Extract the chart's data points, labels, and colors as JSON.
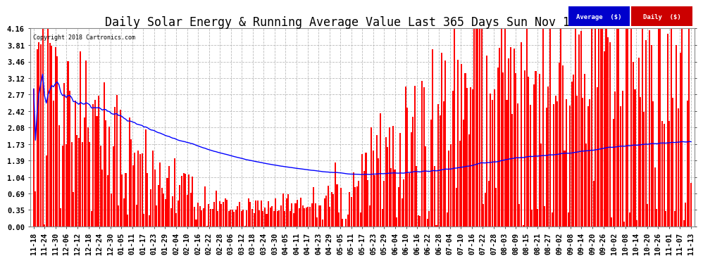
{
  "title": "Daily Solar Energy & Running Average Value Last 365 Days Sun Nov 18 16:34",
  "copyright": "Copyright 2018 Cartronics.com",
  "bar_color": "#FF0000",
  "avg_line_color": "#0000FF",
  "background_color": "#FFFFFF",
  "plot_bg_color": "#FFFFFF",
  "grid_color": "#AAAAAA",
  "yticks": [
    0.0,
    0.35,
    0.69,
    1.04,
    1.39,
    1.73,
    2.08,
    2.42,
    2.77,
    3.12,
    3.46,
    3.81,
    4.16
  ],
  "ylim": [
    0,
    4.16
  ],
  "title_fontsize": 12,
  "tick_fontsize": 7.5,
  "legend_labels": [
    "Average  ($)",
    "Daily  ($)"
  ],
  "legend_colors": [
    "#0000CC",
    "#CC0000"
  ],
  "xtick_labels": [
    "11-18",
    "11-24",
    "11-30",
    "12-06",
    "12-12",
    "12-18",
    "12-24",
    "12-30",
    "01-05",
    "01-11",
    "01-17",
    "01-23",
    "01-29",
    "02-04",
    "02-10",
    "02-16",
    "02-22",
    "02-28",
    "03-06",
    "03-12",
    "03-18",
    "03-24",
    "03-30",
    "04-05",
    "04-11",
    "04-17",
    "04-23",
    "04-29",
    "05-05",
    "05-11",
    "05-17",
    "05-23",
    "05-29",
    "06-04",
    "06-10",
    "06-16",
    "06-22",
    "06-28",
    "07-04",
    "07-10",
    "07-16",
    "07-22",
    "07-28",
    "08-03",
    "08-09",
    "08-15",
    "08-21",
    "08-27",
    "09-02",
    "09-08",
    "09-14",
    "09-20",
    "09-26",
    "10-02",
    "10-08",
    "10-14",
    "10-20",
    "10-26",
    "11-01",
    "11-07",
    "11-13"
  ],
  "num_days": 365,
  "seed": 12345
}
